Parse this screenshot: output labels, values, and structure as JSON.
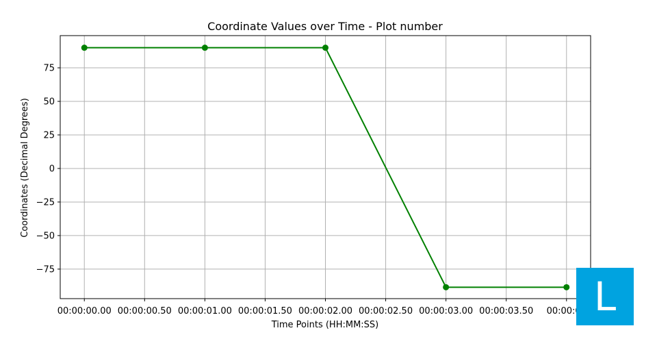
{
  "chart_data": {
    "type": "line",
    "title": "Coordinate Values over Time - Plot number",
    "xlabel": "Time Points (HH:MM:SS)",
    "ylabel": "Coordinates (Decimal Degrees)",
    "x": [
      "00:00:00.00",
      "00:00:01.00",
      "00:00:02.00",
      "00:00:03.00",
      "00:00:04.00"
    ],
    "series": [
      {
        "values": [
          90,
          90,
          90,
          -88.5,
          -88.5
        ],
        "color": "#008000",
        "marker": "circle"
      }
    ],
    "x_ticks": [
      "00:00:00.00",
      "00:00:00.50",
      "00:00:01.00",
      "00:00:01.50",
      "00:00:02.00",
      "00:00:02.50",
      "00:00:03.00",
      "00:00:03.50",
      "00:00:04"
    ],
    "y_ticks": [
      75,
      50,
      25,
      0,
      -25,
      -50,
      -75
    ],
    "y_tick_labels": [
      "75",
      "50",
      "25",
      "0",
      "−25",
      "−50",
      "−75"
    ],
    "xlim": [
      "-00:00:00.20",
      "00:00:04.20"
    ],
    "ylim": [
      -97,
      99
    ],
    "grid": true,
    "legend": "none"
  },
  "badge": {
    "letter": "L",
    "color": "#00a3e0"
  }
}
